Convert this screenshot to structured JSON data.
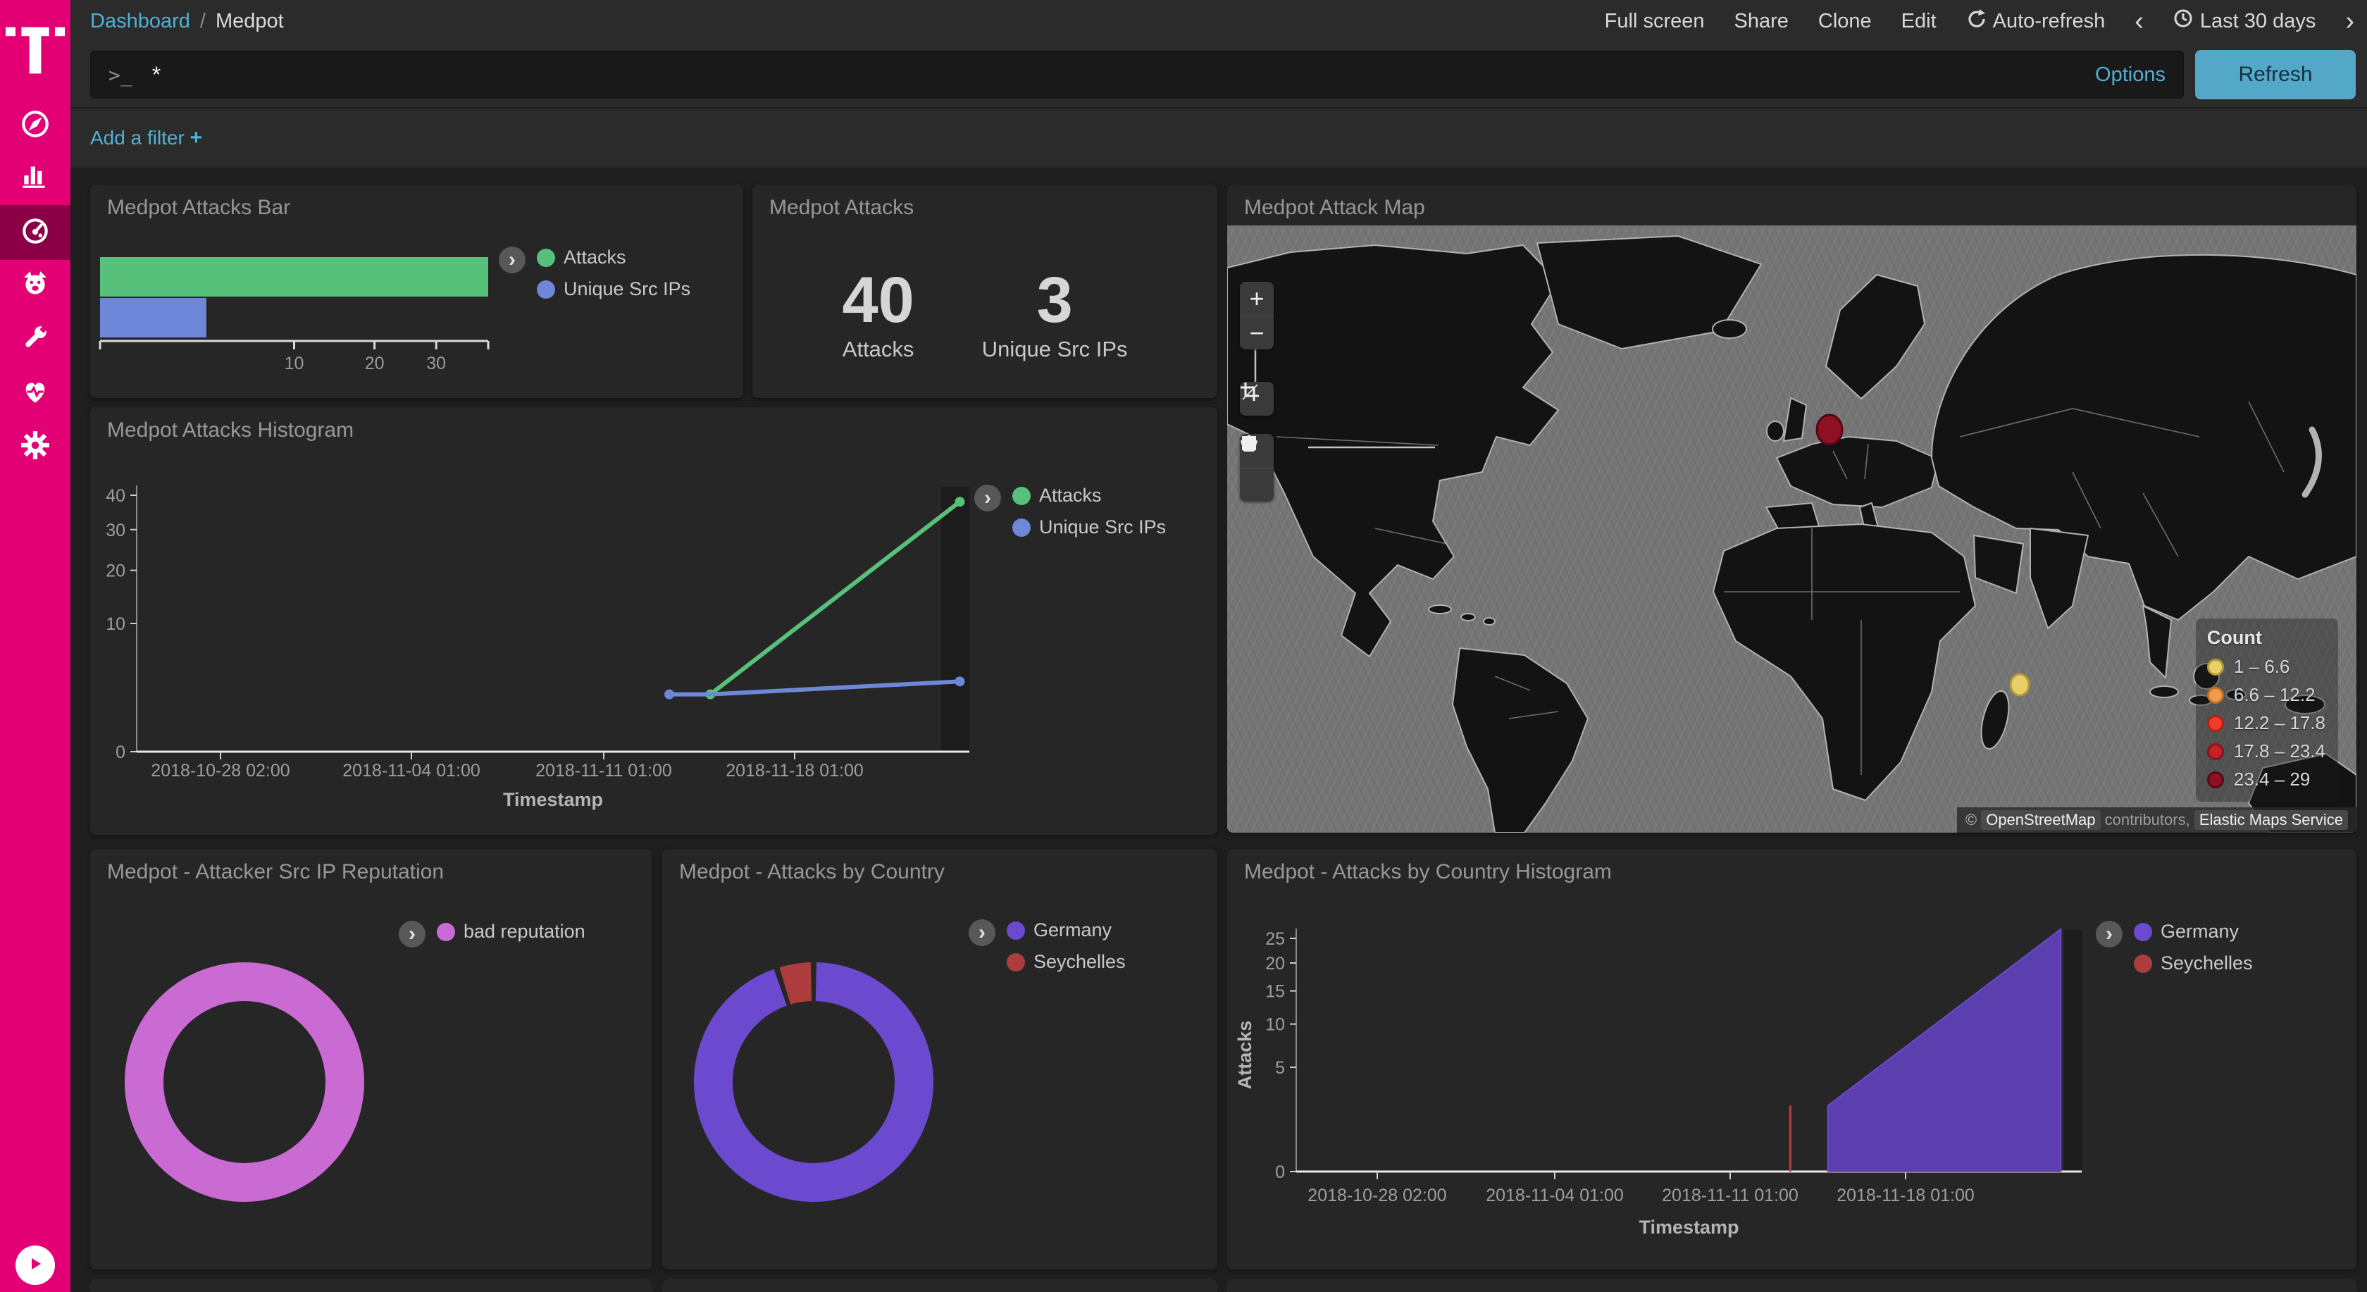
{
  "sidebar": {
    "brand_color": "#e20074",
    "items": [
      {
        "label": "discover",
        "icon": "compass-icon"
      },
      {
        "label": "visualize",
        "icon": "bar-chart-icon"
      },
      {
        "label": "dashboard",
        "icon": "gauge-icon",
        "selected": true
      },
      {
        "label": "devtools",
        "icon": "bear-icon"
      },
      {
        "label": "tools",
        "icon": "wrench-icon"
      },
      {
        "label": "monitoring",
        "icon": "heartbeat-icon"
      },
      {
        "label": "management",
        "icon": "gear-icon"
      }
    ]
  },
  "top_nav": {
    "breadcrumb": {
      "link": "Dashboard",
      "separator": "/",
      "current": "Medpot"
    },
    "actions": [
      "Full screen",
      "Share",
      "Clone",
      "Edit"
    ],
    "auto_refresh": "Auto-refresh",
    "back": "‹",
    "time_range": "Last 30 days",
    "forward": "›"
  },
  "query_bar": {
    "prompt": ">_",
    "value": "*",
    "options": "Options",
    "refresh": "Refresh"
  },
  "filter_bar": {
    "add_filter": "Add a filter",
    "plus": "+"
  },
  "panels": {
    "attacks_bar": {
      "title": "Medpot Attacks Bar",
      "chart_data": {
        "type": "bar",
        "orientation": "horizontal",
        "scale": "square-root",
        "categories": [
          "Attacks",
          "Unique Src IPs"
        ],
        "values": [
          40,
          3
        ],
        "colors": [
          "#57c17b",
          "#6f87d8"
        ],
        "x_ticks": [
          "10",
          "20",
          "30"
        ],
        "xmax": 40
      },
      "legend": [
        {
          "label": "Attacks",
          "color": "#57c17b"
        },
        {
          "label": "Unique Src IPs",
          "color": "#6f87d8"
        }
      ]
    },
    "attacks_metric": {
      "title": "Medpot Attacks",
      "metrics": [
        {
          "value": "40",
          "label": "Attacks"
        },
        {
          "value": "3",
          "label": "Unique Src IPs"
        }
      ]
    },
    "attack_map": {
      "title": "Medpot Attack Map",
      "legend": {
        "title": "Count",
        "items": [
          {
            "range": "1 – 6.6",
            "color": "#e8cf6a",
            "ring": "#b79a35"
          },
          {
            "range": "6.6 – 12.2",
            "color": "#f09c4c",
            "ring": "#bf6f26"
          },
          {
            "range": "12.2 – 17.8",
            "color": "#ef3c2a",
            "ring": "#b32012"
          },
          {
            "range": "17.8 – 23.4",
            "color": "#c32127",
            "ring": "#8c1118"
          },
          {
            "range": "23.4 – 29",
            "color": "#8e1023",
            "ring": "#570811"
          }
        ]
      },
      "points": [
        {
          "location": "Germany",
          "bucket": "23.4 – 29",
          "color": "#8e1023",
          "ring": "#4e0713"
        },
        {
          "location": "Indian Ocean near Seychelles",
          "bucket": "1 – 6.6",
          "color": "#e8cf6a",
          "ring": "#b79a35"
        }
      ],
      "controls": [
        "zoom-in",
        "zoom-out",
        "fit-data-bounds",
        "draw-polygon",
        "draw-rectangle"
      ],
      "attribution": {
        "prefix": "© ",
        "osm": "OpenStreetMap",
        "middle": " contributors, ",
        "ems": "Elastic Maps Service"
      }
    },
    "attacks_histogram": {
      "title": "Medpot Attacks Histogram",
      "chart_data": {
        "type": "line",
        "scale": "square-root",
        "xlabel": "Timestamp",
        "x_ticks": [
          "2018-10-28 02:00",
          "2018-11-04 01:00",
          "2018-11-11 01:00",
          "2018-11-18 01:00"
        ],
        "y_ticks": [
          "0",
          "10",
          "20",
          "30",
          "40"
        ],
        "ymax": 40,
        "series": [
          {
            "name": "Attacks",
            "color": "#57c17b",
            "points": [
              [
                "2018-11-15 00:00",
                2
              ],
              [
                "2018-11-24 03:00",
                38
              ]
            ]
          },
          {
            "name": "Unique Src IPs",
            "color": "#6f87d8",
            "points": [
              [
                "2018-11-13 12:00",
                2
              ],
              [
                "2018-11-15 00:00",
                2
              ],
              [
                "2018-11-24 03:00",
                3
              ]
            ]
          }
        ]
      },
      "legend": [
        {
          "label": "Attacks",
          "color": "#57c17b"
        },
        {
          "label": "Unique Src IPs",
          "color": "#6f87d8"
        }
      ]
    },
    "reputation_donut": {
      "title": "Medpot - Attacker Src IP Reputation",
      "chart_data": {
        "type": "pie",
        "donut": true,
        "slices": [
          {
            "label": "bad reputation",
            "value": 40,
            "color": "#c96bd2"
          }
        ]
      },
      "legend": [
        {
          "label": "bad reputation",
          "color": "#c96bd2"
        }
      ]
    },
    "country_donut": {
      "title": "Medpot - Attacks by Country",
      "chart_data": {
        "type": "pie",
        "donut": true,
        "slices": [
          {
            "label": "Germany",
            "value": 38,
            "color": "#6c4ad0"
          },
          {
            "label": "Seychelles",
            "value": 2,
            "color": "#ad3c3c"
          }
        ]
      },
      "legend": [
        {
          "label": "Germany",
          "color": "#6c4ad0"
        },
        {
          "label": "Seychelles",
          "color": "#ad3c3c"
        }
      ]
    },
    "country_histogram": {
      "title": "Medpot - Attacks by Country Histogram",
      "chart_data": {
        "type": "area",
        "scale": "square-root",
        "xlabel": "Timestamp",
        "ylabel": "Attacks",
        "x_ticks": [
          "2018-10-28 02:00",
          "2018-11-04 01:00",
          "2018-11-11 01:00",
          "2018-11-18 01:00"
        ],
        "y_ticks": [
          "0",
          "5",
          "10",
          "15",
          "20",
          "25"
        ],
        "ymax": 25,
        "series": [
          {
            "name": "Germany",
            "color": "#5b3fae",
            "line_color": "#6c4ad0",
            "points": [
              [
                "2018-11-15 00:00",
                2
              ],
              [
                "2018-11-24 06:00",
                27
              ]
            ]
          },
          {
            "name": "Seychelles",
            "color": "#ad3c3c",
            "points": [
              [
                "2018-11-13 12:00",
                2
              ]
            ]
          }
        ]
      },
      "legend": [
        {
          "label": "Germany",
          "color": "#6c4ad0"
        },
        {
          "label": "Seychelles",
          "color": "#ad3c3c"
        }
      ]
    }
  }
}
